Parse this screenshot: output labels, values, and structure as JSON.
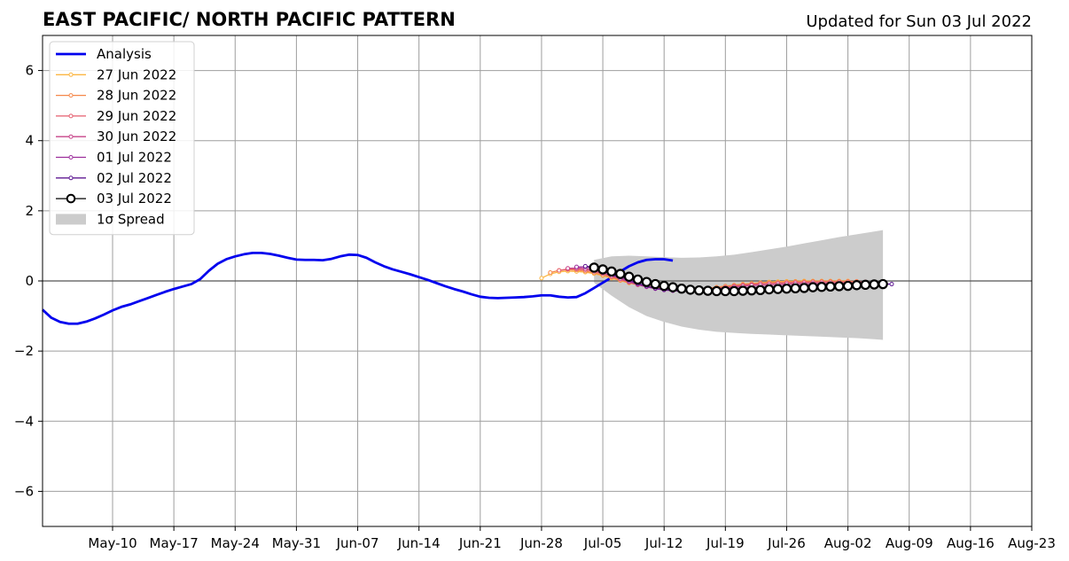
{
  "chart_data": {
    "type": "line",
    "title": "EAST PACIFIC/ NORTH PACIFIC PATTERN",
    "subtitle": "Updated for Sun 03 Jul 2022",
    "xlabel": "",
    "ylabel": "",
    "x_range": [
      "2022-05-02",
      "2022-08-23"
    ],
    "ylim": [
      -7,
      7
    ],
    "x_ticks": [
      {
        "date": "2022-05-10",
        "label": "May-10"
      },
      {
        "date": "2022-05-17",
        "label": "May-17"
      },
      {
        "date": "2022-05-24",
        "label": "May-24"
      },
      {
        "date": "2022-05-31",
        "label": "May-31"
      },
      {
        "date": "2022-06-07",
        "label": "Jun-07"
      },
      {
        "date": "2022-06-14",
        "label": "Jun-14"
      },
      {
        "date": "2022-06-21",
        "label": "Jun-21"
      },
      {
        "date": "2022-06-28",
        "label": "Jun-28"
      },
      {
        "date": "2022-07-05",
        "label": "Jul-05"
      },
      {
        "date": "2022-07-12",
        "label": "Jul-12"
      },
      {
        "date": "2022-07-19",
        "label": "Jul-19"
      },
      {
        "date": "2022-07-26",
        "label": "Jul-26"
      },
      {
        "date": "2022-08-02",
        "label": "Aug-02"
      },
      {
        "date": "2022-08-09",
        "label": "Aug-09"
      },
      {
        "date": "2022-08-16",
        "label": "Aug-16"
      },
      {
        "date": "2022-08-23",
        "label": "Aug-23"
      }
    ],
    "y_ticks": [
      {
        "value": 6,
        "label": "6"
      },
      {
        "value": 4,
        "label": "4"
      },
      {
        "value": 2,
        "label": "2"
      },
      {
        "value": 0,
        "label": "0"
      },
      {
        "value": -2,
        "label": "−2"
      },
      {
        "value": -4,
        "label": "−4"
      },
      {
        "value": -6,
        "label": "−6"
      }
    ],
    "grid": true,
    "legend_placement": "top-left",
    "legend_labels": {
      "analysis": "Analysis",
      "spread": "1σ Spread"
    },
    "analysis": {
      "name": "Analysis",
      "color": "#0000ee",
      "start": "2022-05-02",
      "values": [
        -0.82,
        -1.05,
        -1.17,
        -1.22,
        -1.22,
        -1.16,
        -1.07,
        -0.96,
        -0.84,
        -0.74,
        -0.67,
        -0.58,
        -0.49,
        -0.4,
        -0.31,
        -0.23,
        -0.16,
        -0.09,
        0.05,
        0.29,
        0.49,
        0.62,
        0.7,
        0.76,
        0.8,
        0.8,
        0.77,
        0.72,
        0.66,
        0.61,
        0.6,
        0.6,
        0.59,
        0.63,
        0.7,
        0.75,
        0.74,
        0.66,
        0.53,
        0.42,
        0.33,
        0.26,
        0.19,
        0.11,
        0.03,
        -0.06,
        -0.15,
        -0.23,
        -0.3,
        -0.38,
        -0.45,
        -0.48,
        -0.49,
        -0.48,
        -0.47,
        -0.46,
        -0.44,
        -0.41,
        -0.41,
        -0.45,
        -0.47,
        -0.46,
        -0.35,
        -0.2,
        -0.05,
        0.1,
        0.27,
        0.42,
        0.53,
        0.6,
        0.62,
        0.62,
        0.58
      ]
    },
    "spread": {
      "name": "1σ Spread",
      "color": "#cccccc",
      "start": "2022-07-04",
      "days": [
        0,
        2,
        4,
        6,
        8,
        10,
        12,
        14,
        16,
        18,
        20,
        22,
        24,
        26,
        28,
        30,
        32,
        33
      ],
      "upper": [
        0.6,
        0.7,
        0.72,
        0.7,
        0.68,
        0.66,
        0.67,
        0.7,
        0.75,
        0.82,
        0.9,
        0.98,
        1.07,
        1.16,
        1.25,
        1.33,
        1.41,
        1.45
      ],
      "lower": [
        -0.05,
        -0.42,
        -0.75,
        -1.0,
        -1.17,
        -1.3,
        -1.39,
        -1.45,
        -1.48,
        -1.51,
        -1.53,
        -1.55,
        -1.57,
        -1.59,
        -1.61,
        -1.63,
        -1.66,
        -1.68
      ]
    },
    "forecasts": [
      {
        "name": "27 Jun 2022",
        "color": "#fcb643",
        "start": "2022-06-28",
        "values": [
          0.08,
          0.2,
          0.26,
          0.28,
          0.27,
          0.25,
          0.21,
          0.15,
          0.08,
          0.01,
          -0.06,
          -0.11,
          -0.15,
          -0.18,
          -0.21,
          -0.23,
          -0.24,
          -0.24,
          -0.23,
          -0.21,
          -0.18,
          -0.15,
          -0.12,
          -0.09,
          -0.07,
          -0.05,
          -0.03,
          -0.02,
          -0.01,
          -0.01,
          0.0,
          0.0,
          0.0,
          0.0,
          0.0,
          0.0
        ]
      },
      {
        "name": "28 Jun 2022",
        "color": "#f5874a",
        "start": "2022-06-29",
        "values": [
          0.24,
          0.3,
          0.32,
          0.31,
          0.28,
          0.23,
          0.17,
          0.1,
          0.02,
          -0.05,
          -0.11,
          -0.15,
          -0.19,
          -0.21,
          -0.23,
          -0.24,
          -0.24,
          -0.23,
          -0.21,
          -0.18,
          -0.15,
          -0.12,
          -0.1,
          -0.08,
          -0.06,
          -0.05,
          -0.04,
          -0.03,
          -0.02,
          -0.02,
          -0.01,
          -0.01,
          -0.01,
          -0.01,
          -0.01,
          -0.01
        ]
      },
      {
        "name": "29 Jun 2022",
        "color": "#e55d6e",
        "start": "2022-06-30",
        "values": [
          0.3,
          0.34,
          0.34,
          0.32,
          0.27,
          0.21,
          0.13,
          0.05,
          -0.03,
          -0.1,
          -0.16,
          -0.21,
          -0.24,
          -0.26,
          -0.27,
          -0.27,
          -0.26,
          -0.24,
          -0.21,
          -0.18,
          -0.15,
          -0.12,
          -0.1,
          -0.08,
          -0.07,
          -0.06,
          -0.05,
          -0.04,
          -0.04,
          -0.03,
          -0.03,
          -0.03,
          -0.03,
          -0.03,
          -0.03,
          -0.03
        ]
      },
      {
        "name": "30 Jun 2022",
        "color": "#c7448a",
        "start": "2022-07-01",
        "values": [
          0.36,
          0.37,
          0.35,
          0.3,
          0.23,
          0.15,
          0.06,
          -0.03,
          -0.11,
          -0.17,
          -0.22,
          -0.25,
          -0.27,
          -0.28,
          -0.28,
          -0.27,
          -0.25,
          -0.22,
          -0.2,
          -0.17,
          -0.15,
          -0.13,
          -0.12,
          -0.11,
          -0.1,
          -0.09,
          -0.08,
          -0.08,
          -0.07,
          -0.07,
          -0.07,
          -0.07,
          -0.07,
          -0.07,
          -0.07,
          -0.07
        ]
      },
      {
        "name": "01 Jul 2022",
        "color": "#9d2f9c",
        "start": "2022-07-02",
        "values": [
          0.4,
          0.4,
          0.36,
          0.29,
          0.2,
          0.1,
          0.0,
          -0.09,
          -0.16,
          -0.22,
          -0.26,
          -0.28,
          -0.29,
          -0.29,
          -0.28,
          -0.27,
          -0.25,
          -0.23,
          -0.21,
          -0.2,
          -0.19,
          -0.18,
          -0.17,
          -0.16,
          -0.15,
          -0.14,
          -0.13,
          -0.12,
          -0.11,
          -0.1,
          -0.09,
          -0.09,
          -0.08,
          -0.08,
          -0.08,
          -0.08
        ]
      },
      {
        "name": "02 Jul 2022",
        "color": "#5f1a93",
        "start": "2022-07-03",
        "values": [
          0.42,
          0.39,
          0.33,
          0.24,
          0.14,
          0.03,
          -0.07,
          -0.15,
          -0.21,
          -0.25,
          -0.27,
          -0.28,
          -0.28,
          -0.28,
          -0.27,
          -0.26,
          -0.25,
          -0.24,
          -0.23,
          -0.22,
          -0.21,
          -0.2,
          -0.19,
          -0.18,
          -0.17,
          -0.16,
          -0.15,
          -0.14,
          -0.13,
          -0.12,
          -0.11,
          -0.1,
          -0.1,
          -0.09,
          -0.09,
          -0.09
        ]
      },
      {
        "name": "03 Jul 2022",
        "color": "#000000",
        "start": "2022-07-04",
        "values": [
          0.38,
          0.33,
          0.27,
          0.2,
          0.12,
          0.04,
          -0.03,
          -0.09,
          -0.14,
          -0.18,
          -0.22,
          -0.25,
          -0.27,
          -0.28,
          -0.29,
          -0.29,
          -0.29,
          -0.28,
          -0.27,
          -0.26,
          -0.24,
          -0.23,
          -0.22,
          -0.21,
          -0.2,
          -0.18,
          -0.17,
          -0.16,
          -0.15,
          -0.14,
          -0.12,
          -0.11,
          -0.1,
          -0.09
        ]
      }
    ]
  }
}
